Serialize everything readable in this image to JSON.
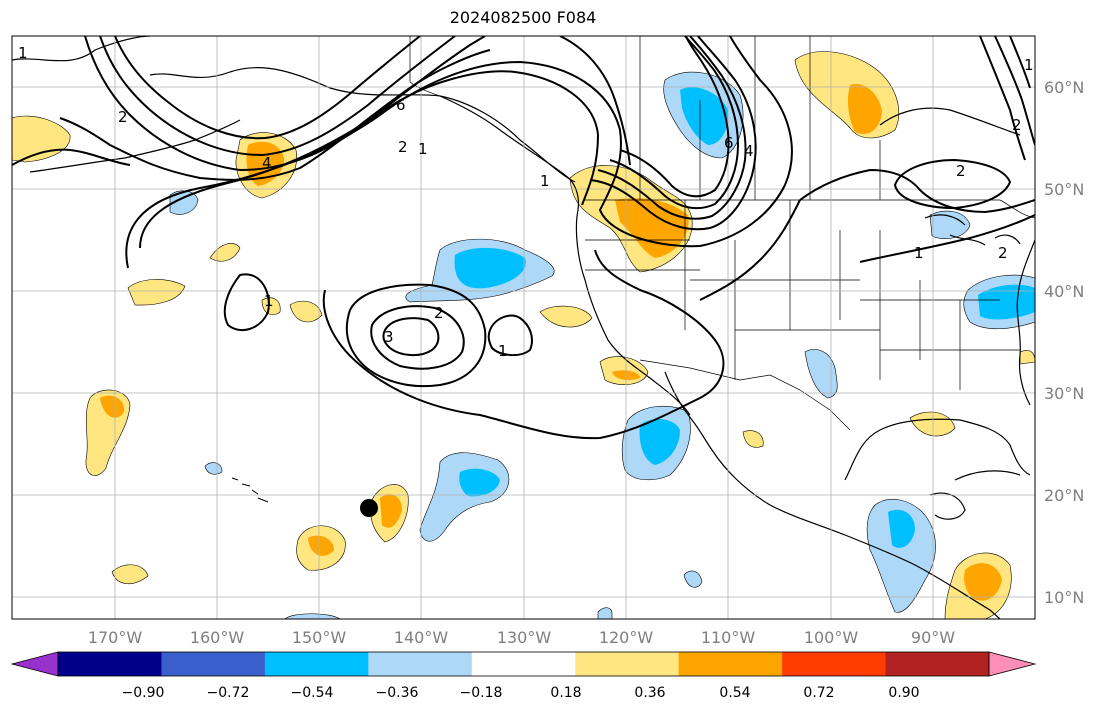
{
  "title": "2024082500 F084",
  "lat_labels": [
    "60°N",
    "50°N",
    "40°N",
    "30°N",
    "20°N",
    "10°N"
  ],
  "lon_labels": [
    "170°W",
    "160°W",
    "150°W",
    "140°W",
    "130°W",
    "120°W",
    "110°W",
    "100°W",
    "90°W"
  ],
  "colorbar": {
    "ticks": [
      "−0.90",
      "−0.72",
      "−0.54",
      "−0.36",
      "−0.18",
      "0.18",
      "0.36",
      "0.54",
      "0.72",
      "0.90"
    ],
    "colors": [
      "#9932cc",
      "#00008b",
      "#3a5fcd",
      "#00bfff",
      "#add8f7",
      "#ffffff",
      "#ffe680",
      "#ffa500",
      "#ff3d00",
      "#b22222",
      "#ff8fb8"
    ]
  },
  "contour_labels": [
    "1",
    "2",
    "4",
    "6",
    "1",
    "2",
    "6",
    "4",
    "2",
    "1",
    "1",
    "3",
    "2",
    "1",
    "2",
    "1",
    "1",
    "2"
  ],
  "colors": {
    "pos_light": "#ffe680",
    "pos_mid": "#ffa500",
    "neg_light": "#add8f7",
    "neg_mid": "#00bfff"
  }
}
